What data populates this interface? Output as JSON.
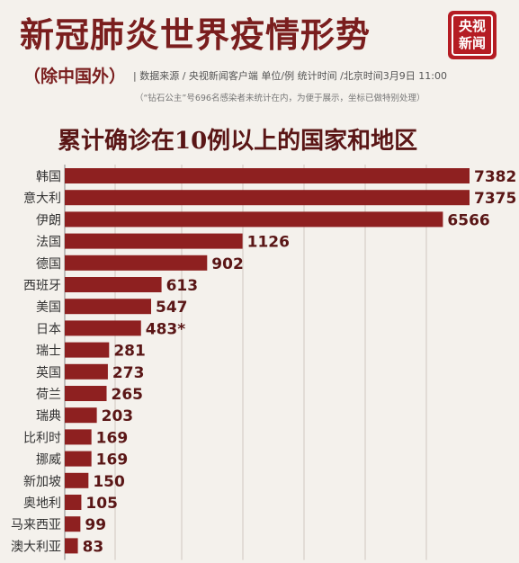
{
  "header": {
    "title": "新冠肺炎世界疫情形势",
    "region_note": "（除中国外）",
    "source_line": "| 数据来源 / 央视新闻客户端  单位/例   统计时间 /北京时间3月9日 11:00",
    "footnote": "（“钻石公主”号696名感染者未统计在内，为便于展示，坐标已做特别处理）",
    "logo_line1": "央视",
    "logo_line2": "新闻"
  },
  "colors": {
    "bar": "#8e2020",
    "title": "#7a1e1e",
    "logo_bg": "#b51c23"
  },
  "chart_data": {
    "type": "bar",
    "orientation": "horizontal",
    "title": "累计确诊在10例以上的国家和地区",
    "categories": [
      "韩国",
      "意大利",
      "伊朗",
      "法国",
      "德国",
      "西班牙",
      "美国",
      "日本",
      "瑞士",
      "英国",
      "荷兰",
      "瑞典",
      "比利时",
      "挪威",
      "新加坡",
      "奥地利",
      "马来西亚",
      "澳大利亚"
    ],
    "values": [
      7382,
      7375,
      6566,
      1126,
      902,
      613,
      547,
      483,
      281,
      273,
      265,
      203,
      169,
      169,
      150,
      105,
      99,
      83
    ],
    "value_labels": [
      "7382",
      "7375",
      "6566",
      "1126",
      "902",
      "613",
      "547",
      "483*",
      "281",
      "273",
      "265",
      "203",
      "169",
      "169",
      "150",
      "105",
      "99",
      "83"
    ],
    "scale": "special-compressed",
    "grid": true
  }
}
